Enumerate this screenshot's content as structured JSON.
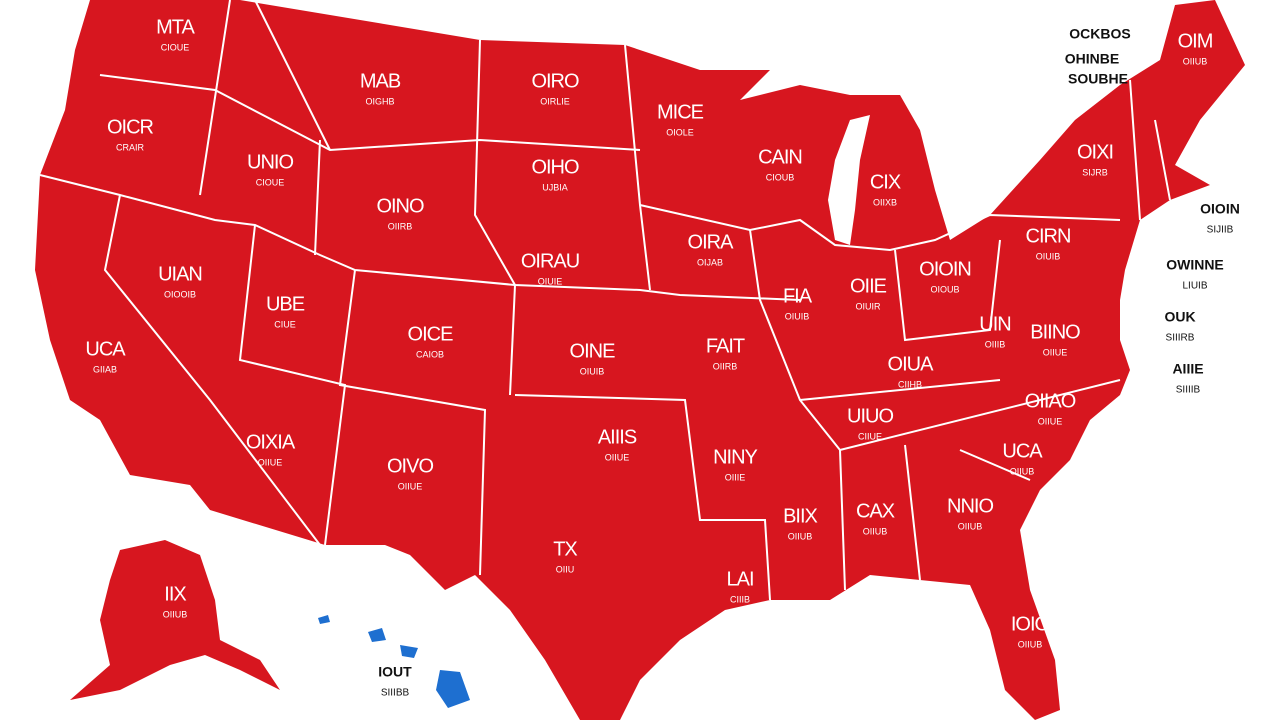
{
  "states": [
    {
      "label": "MTA",
      "sublabel": "CIOUE"
    },
    {
      "label": "OICR",
      "sublabel": "CRAIR"
    },
    {
      "label": "UNIO",
      "sublabel": "CIOUE"
    },
    {
      "label": "MAB",
      "sublabel": "OIGHB"
    },
    {
      "label": "OIRO",
      "sublabel": "OIRLIE"
    },
    {
      "label": "MICE",
      "sublabel": "OIOLE"
    },
    {
      "label": "OIHO",
      "sublabel": "UJBIA"
    },
    {
      "label": "OINO",
      "sublabel": "OIIRB"
    },
    {
      "label": "UIAN",
      "sublabel": "OIOOIB"
    },
    {
      "label": "UBE",
      "sublabel": "CIUE"
    },
    {
      "label": "OICE",
      "sublabel": "CAIOB"
    },
    {
      "label": "OIRAU",
      "sublabel": "OIUIE"
    },
    {
      "label": "OIRA",
      "sublabel": "OIJAB"
    },
    {
      "label": "CAIN",
      "sublabel": "CIOUB"
    },
    {
      "label": "CIX",
      "sublabel": "OIIXB"
    },
    {
      "label": "OIXI",
      "sublabel": "SIJRB"
    },
    {
      "label": "CIRN",
      "sublabel": "OIUIB"
    },
    {
      "label": "OIOIN",
      "sublabel": "OIOUB"
    },
    {
      "label": "OIIE",
      "sublabel": "OIUIR"
    },
    {
      "label": "FIA",
      "sublabel": "OIUIB"
    },
    {
      "label": "OINE",
      "sublabel": "OIUIB"
    },
    {
      "label": "FAIT",
      "sublabel": "OIIRB"
    },
    {
      "label": "UIN",
      "sublabel": "OIIIB"
    },
    {
      "label": "BIINO",
      "sublabel": "OIIUE"
    },
    {
      "label": "OIUA",
      "sublabel": "CIIHB"
    },
    {
      "label": "UIUO",
      "sublabel": "CIIUE"
    },
    {
      "label": "OIIAO",
      "sublabel": "OIIUE"
    },
    {
      "label": "UCA",
      "sublabel": "GIIAB"
    },
    {
      "label": "OIXIA",
      "sublabel": "OIIUE"
    },
    {
      "label": "OIVO",
      "sublabel": "OIIUE"
    },
    {
      "label": "AIIIS",
      "sublabel": "OIIUE"
    },
    {
      "label": "NINY",
      "sublabel": "OIIIE"
    },
    {
      "label": "UCA",
      "sublabel": "OIIUB"
    },
    {
      "label": "BIIX",
      "sublabel": "OIIUB"
    },
    {
      "label": "CAX",
      "sublabel": "OIIUB"
    },
    {
      "label": "NNIO",
      "sublabel": "OIIUB"
    },
    {
      "label": "TX",
      "sublabel": "OIIU"
    },
    {
      "label": "LAI",
      "sublabel": "CIIIB"
    },
    {
      "label": "IOIO",
      "sublabel": "OIIUB"
    },
    {
      "label": "IIX",
      "sublabel": "OIIUB"
    },
    {
      "label": "OIM",
      "sublabel": "OIIUB"
    }
  ],
  "callouts": [
    {
      "label": "OCKBOS"
    },
    {
      "label": "OHINBE"
    },
    {
      "label": "SOUBHE"
    },
    {
      "label": "OIOIN",
      "sublabel": "SIJIIB"
    },
    {
      "label": "OWINNE",
      "sublabel": "LIUIB"
    },
    {
      "label": "OUK",
      "sublabel": "SIIIRB"
    },
    {
      "label": "AIIIE",
      "sublabel": "SIIIIB"
    },
    {
      "label": "IOUT",
      "sublabel": "SIIIBB"
    }
  ]
}
